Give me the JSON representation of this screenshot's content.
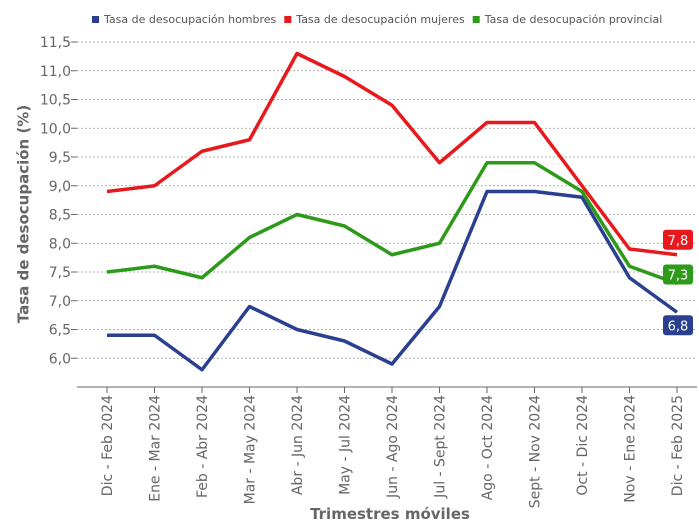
{
  "chart_data": {
    "type": "line",
    "categories": [
      "Dic - Feb 2024",
      "Ene - Mar 2024",
      "Feb - Abr 2024",
      "Mar - May 2024",
      "Abr - Jun 2024",
      "May - Jul 2024",
      "Jun - Ago 2024",
      "Jul - Sept 2024",
      "Ago - Oct 2024",
      "Sept - Nov 2024",
      "Oct - Dic 2024",
      "Nov - Ene 2024",
      "Dic - Feb 2025"
    ],
    "series": [
      {
        "name": "Tasa de desocupación hombres",
        "color": "#2a3f8f",
        "values": [
          6.4,
          6.4,
          5.8,
          6.9,
          6.5,
          6.3,
          5.9,
          6.9,
          8.9,
          8.9,
          8.8,
          7.4,
          6.8
        ],
        "value_labels": [
          null,
          null,
          null,
          null,
          null,
          null,
          null,
          null,
          null,
          null,
          null,
          null,
          "6,8"
        ]
      },
      {
        "name": "Tasa de desocupación mujeres",
        "color": "#e8191c",
        "values": [
          8.9,
          9.0,
          9.6,
          9.8,
          11.3,
          10.9,
          10.4,
          9.4,
          10.1,
          10.1,
          9.0,
          7.9,
          7.8
        ],
        "value_labels": [
          null,
          null,
          null,
          null,
          null,
          null,
          null,
          null,
          null,
          null,
          null,
          null,
          "7,8"
        ]
      },
      {
        "name": "Tasa de desocupación provincial",
        "color": "#2e9a1a",
        "values": [
          7.5,
          7.6,
          7.4,
          8.1,
          8.5,
          8.3,
          7.8,
          8.0,
          9.4,
          9.4,
          8.9,
          7.6,
          7.3
        ],
        "value_labels": [
          null,
          null,
          null,
          null,
          null,
          null,
          null,
          null,
          null,
          null,
          null,
          null,
          "7,3"
        ]
      }
    ],
    "y_label": "Tasa de desocupación (%)",
    "x_label": "Trimestres móviles",
    "ylim": [
      5.5,
      11.5
    ],
    "yticks": [
      {
        "value": 6.0,
        "label": "6,0"
      },
      {
        "value": 6.5,
        "label": "6,5"
      },
      {
        "value": 7.0,
        "label": "7,0"
      },
      {
        "value": 7.5,
        "label": "7,5"
      },
      {
        "value": 8.0,
        "label": "8,0"
      },
      {
        "value": 8.5,
        "label": "8,5"
      },
      {
        "value": 9.0,
        "label": "9,0"
      },
      {
        "value": 9.5,
        "label": "9,5"
      },
      {
        "value": 10.0,
        "label": "10,0"
      },
      {
        "value": 10.5,
        "label": "10,5"
      },
      {
        "value": 11.0,
        "label": "11,0"
      },
      {
        "value": 11.5,
        "label": "11,5"
      }
    ],
    "grid": true,
    "legend": "top"
  }
}
